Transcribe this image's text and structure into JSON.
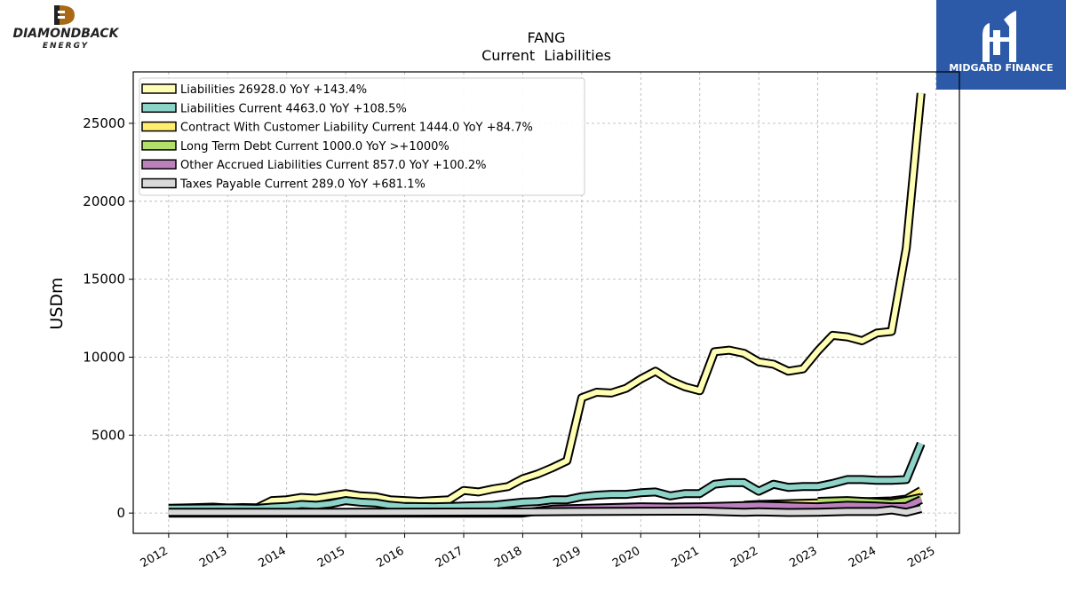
{
  "brand_left": {
    "name": "DIAMONDBACK",
    "sub": "ENERGY"
  },
  "brand_right": {
    "name": "MIDGARD FINANCE"
  },
  "chart_data": {
    "type": "line",
    "title": "FANG",
    "subtitle": "Current  Liabilities",
    "ylabel": "USDm",
    "xlabel": "",
    "xlim": [
      2011.4,
      2025.4
    ],
    "ylim": [
      -1300,
      28300
    ],
    "x_ticks": [
      2012,
      2013,
      2014,
      2015,
      2016,
      2017,
      2018,
      2019,
      2020,
      2021,
      2022,
      2023,
      2024,
      2025
    ],
    "y_ticks": [
      0,
      5000,
      10000,
      15000,
      20000,
      25000
    ],
    "grid": true,
    "legend_position": "top-left",
    "series": [
      {
        "name": "Liabilities",
        "legend": "Liabilities  26928.0 YoY +143.4%",
        "color": "#ffffb3",
        "x": [
          2012.0,
          2012.5,
          2012.75,
          2013.0,
          2013.25,
          2013.5,
          2013.75,
          2014.0,
          2014.25,
          2014.5,
          2014.75,
          2015.0,
          2015.25,
          2015.5,
          2015.75,
          2016.0,
          2016.25,
          2016.5,
          2016.75,
          2017.0,
          2017.25,
          2017.5,
          2017.75,
          2018.0,
          2018.25,
          2018.5,
          2018.75,
          2019.0,
          2019.25,
          2019.5,
          2019.75,
          2020.0,
          2020.25,
          2020.5,
          2020.75,
          2021.0,
          2021.25,
          2021.5,
          2021.75,
          2022.0,
          2022.25,
          2022.5,
          2022.75,
          2023.0,
          2023.25,
          2023.5,
          2023.75,
          2024.0,
          2024.25,
          2024.5,
          2024.75
        ],
        "values": [
          300,
          350,
          380,
          320,
          350,
          340,
          800,
          850,
          1000,
          950,
          1100,
          1250,
          1100,
          1050,
          850,
          800,
          750,
          800,
          850,
          1450,
          1350,
          1550,
          1700,
          2200,
          2500,
          2900,
          3350,
          7400,
          7750,
          7700,
          8000,
          8600,
          9100,
          8500,
          8100,
          7850,
          10350,
          10450,
          10250,
          9700,
          9550,
          9100,
          9250,
          10400,
          11400,
          11300,
          11050,
          11550,
          11650,
          17000,
          26928
        ]
      },
      {
        "name": "Liabilities Current",
        "legend": "Liabilities Current  4463.0 YoY +108.5%",
        "color": "#8dd3c7",
        "x": [
          2012.0,
          2013.0,
          2013.5,
          2013.75,
          2014.0,
          2014.25,
          2014.5,
          2014.75,
          2015.0,
          2015.25,
          2015.5,
          2015.75,
          2016.0,
          2016.5,
          2016.75,
          2017.0,
          2017.5,
          2018.0,
          2018.25,
          2018.5,
          2018.75,
          2019.0,
          2019.25,
          2019.5,
          2019.75,
          2020.0,
          2020.25,
          2020.5,
          2020.75,
          2021.0,
          2021.25,
          2021.5,
          2021.75,
          2022.0,
          2022.25,
          2022.5,
          2022.75,
          2023.0,
          2023.25,
          2023.5,
          2023.75,
          2024.0,
          2024.25,
          2024.5,
          2024.75
        ],
        "values": [
          300,
          330,
          300,
          380,
          420,
          550,
          500,
          600,
          800,
          700,
          650,
          500,
          420,
          400,
          420,
          450,
          500,
          700,
          730,
          850,
          850,
          1050,
          1150,
          1200,
          1200,
          1300,
          1350,
          1100,
          1250,
          1250,
          1850,
          1950,
          1950,
          1400,
          1850,
          1650,
          1700,
          1700,
          1900,
          2150,
          2150,
          2100,
          2100,
          2150,
          4463
        ]
      },
      {
        "name": "Contract With Customer Liability Current",
        "legend": "Contract With Customer Liability Current  1444.0 YoY +84.7%",
        "color": "#ffed6f",
        "x": [
          2021.75,
          2022.0,
          2022.5,
          2023.0,
          2023.5,
          2024.0,
          2024.25,
          2024.5,
          2024.75
        ],
        "values": [
          500,
          550,
          600,
          650,
          700,
          750,
          780,
          900,
          1444
        ]
      },
      {
        "name": "Long Term Debt Current",
        "legend": "Long Term Debt Current  1000.0 YoY >+1000%",
        "color": "#b3de69",
        "x": [
          2023.0,
          2023.5,
          2024.0,
          2024.25,
          2024.5,
          2024.75
        ],
        "values": [
          750,
          800,
          700,
          650,
          800,
          1000
        ]
      },
      {
        "name": "Other Accrued Liabilities Current",
        "legend": "Other Accrued Liabilities Current  857.0 YoY +100.2%",
        "color": "#bc80bd",
        "x": [
          2012.0,
          2014.0,
          2016.0,
          2018.0,
          2018.5,
          2019.0,
          2019.5,
          2020.0,
          2020.5,
          2021.0,
          2021.5,
          2022.0,
          2022.5,
          2023.0,
          2023.5,
          2024.0,
          2024.25,
          2024.5,
          2024.75
        ],
        "values": [
          0,
          0,
          0,
          0,
          250,
          300,
          350,
          400,
          380,
          400,
          450,
          500,
          450,
          400,
          500,
          450,
          400,
          420,
          857
        ]
      },
      {
        "name": "Taxes Payable Current",
        "legend": "Taxes Payable Current  289.0 YoY +681.1%",
        "color": "#d9d9d9",
        "x": [
          2012.0,
          2014.0,
          2016.0,
          2018.0,
          2019.0,
          2020.0,
          2021.0,
          2021.75,
          2022.0,
          2022.5,
          2023.0,
          2023.5,
          2024.0,
          2024.25,
          2024.5,
          2024.75
        ],
        "values": [
          50,
          50,
          60,
          70,
          100,
          120,
          130,
          50,
          80,
          40,
          50,
          100,
          100,
          200,
          50,
          289
        ]
      }
    ]
  }
}
